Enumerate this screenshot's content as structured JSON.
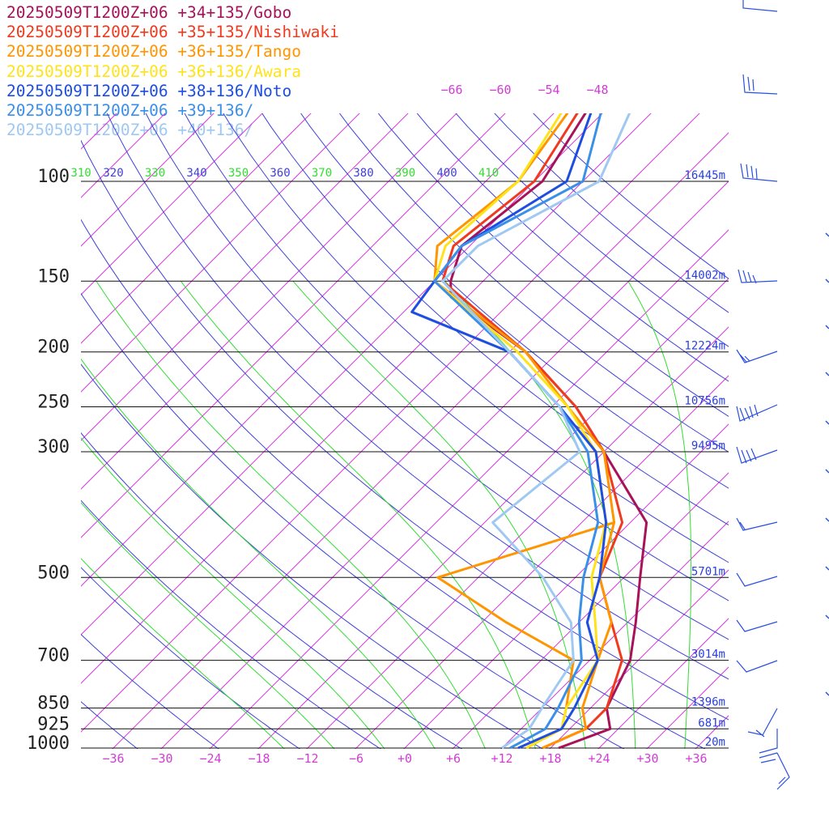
{
  "chart_data": {
    "type": "line",
    "diagram": "skew-T log-p",
    "series": [
      {
        "name": "20250509T1200Z+06 +34+135/Gobo",
        "color": "#a8125a",
        "temperature": [
          [
            1000,
            19
          ],
          [
            925,
            23
          ],
          [
            850,
            20
          ],
          [
            700,
            17
          ],
          [
            600,
            13
          ],
          [
            500,
            8
          ],
          [
            400,
            2
          ],
          [
            300,
            -12
          ],
          [
            250,
            -21
          ],
          [
            200,
            -34
          ],
          [
            160,
            -50
          ],
          [
            150,
            -52
          ],
          [
            130,
            -55
          ],
          [
            100,
            -53
          ],
          [
            70,
            -57
          ],
          [
            50,
            -51
          ]
        ]
      },
      {
        "name": "20250509T1200Z+06 +35+135/Nishiwaki",
        "color": "#f03a1e",
        "temperature": [
          [
            1000,
            17
          ],
          [
            925,
            20
          ],
          [
            850,
            20
          ],
          [
            700,
            16
          ],
          [
            600,
            10
          ],
          [
            500,
            3
          ],
          [
            400,
            -1
          ],
          [
            300,
            -12
          ],
          [
            250,
            -21
          ],
          [
            200,
            -34
          ],
          [
            150,
            -53
          ],
          [
            130,
            -56
          ],
          [
            100,
            -54
          ],
          [
            70,
            -58
          ],
          [
            50,
            -51
          ]
        ]
      },
      {
        "name": "20250509T1200Z+06 +36+135/Tango",
        "color": "#ff9500",
        "temperature": [
          [
            1000,
            17
          ],
          [
            925,
            20
          ],
          [
            850,
            17
          ],
          [
            700,
            13
          ],
          [
            600,
            10
          ],
          [
            500,
            3
          ],
          [
            400,
            -2
          ],
          [
            300,
            -12
          ],
          [
            250,
            -22
          ],
          [
            200,
            -34
          ],
          [
            150,
            -54
          ],
          [
            130,
            -58
          ],
          [
            100,
            -56
          ],
          [
            70,
            -59
          ],
          [
            50,
            -52
          ]
        ],
        "dewpoint": [
          [
            1000,
            15
          ],
          [
            925,
            17
          ],
          [
            850,
            15
          ],
          [
            700,
            10
          ],
          [
            600,
            -3
          ],
          [
            500,
            -17
          ],
          [
            400,
            -2
          ]
        ]
      },
      {
        "name": "20250509T1200Z+06 +36+136/Awara",
        "color": "#ffe31a",
        "temperature": [
          [
            1000,
            15
          ],
          [
            925,
            17
          ],
          [
            850,
            15
          ],
          [
            700,
            13
          ],
          [
            600,
            8
          ],
          [
            500,
            2
          ],
          [
            400,
            -3
          ],
          [
            300,
            -13
          ],
          [
            250,
            -22
          ],
          [
            200,
            -35
          ],
          [
            150,
            -54
          ],
          [
            130,
            -57
          ],
          [
            100,
            -56
          ],
          [
            70,
            -60
          ],
          [
            50,
            -53
          ]
        ]
      },
      {
        "name": "20250509T1200Z+06 +38+136/Noto",
        "color": "#1d4ee0",
        "temperature": [
          [
            1000,
            14
          ],
          [
            925,
            17
          ],
          [
            850,
            16
          ],
          [
            700,
            13
          ],
          [
            600,
            7
          ],
          [
            500,
            3
          ],
          [
            400,
            -3
          ],
          [
            300,
            -13
          ],
          [
            250,
            -23
          ],
          [
            200,
            -36
          ],
          [
            170,
            -53
          ],
          [
            150,
            -54
          ],
          [
            130,
            -55
          ],
          [
            100,
            -50
          ],
          [
            70,
            -57
          ],
          [
            50,
            -53
          ]
        ]
      },
      {
        "name": "20250509T1200Z+06 +39+136/",
        "color": "#3a8fe8",
        "temperature": [
          [
            1000,
            13
          ],
          [
            925,
            15
          ],
          [
            850,
            14
          ],
          [
            700,
            11
          ],
          [
            600,
            6
          ],
          [
            500,
            1
          ],
          [
            400,
            -4
          ],
          [
            300,
            -14
          ],
          [
            250,
            -23
          ],
          [
            200,
            -36
          ],
          [
            150,
            -54
          ],
          [
            130,
            -55
          ],
          [
            100,
            -48
          ],
          [
            70,
            -56
          ],
          [
            50,
            -54
          ]
        ]
      },
      {
        "name": "20250509T1200Z+06 +40+136/",
        "color": "#9fc8f2",
        "temperature": [
          [
            1000,
            12
          ],
          [
            925,
            13
          ],
          [
            850,
            12
          ],
          [
            700,
            10
          ],
          [
            600,
            5
          ],
          [
            500,
            -4
          ],
          [
            400,
            -17
          ],
          [
            300,
            -15
          ],
          [
            250,
            -23
          ],
          [
            200,
            -36
          ],
          [
            150,
            -53
          ],
          [
            130,
            -53
          ],
          [
            100,
            -46
          ],
          [
            70,
            -52
          ],
          [
            50,
            -53
          ]
        ]
      }
    ],
    "pressure_levels": [
      100,
      150,
      200,
      250,
      300,
      500,
      700,
      850,
      925,
      1000
    ],
    "pressure_level_labels": [
      "100",
      "150",
      "200",
      "250",
      "300",
      "500",
      "700",
      "850",
      "925",
      "1000"
    ],
    "height_labels": [
      "16445m",
      "14002m",
      "12224m",
      "10756m",
      "9495m",
      "5701m",
      "3014m",
      "1396m",
      "681m",
      "20m"
    ],
    "x_ticks": [
      -36,
      -30,
      -24,
      -18,
      -12,
      -6,
      0,
      6,
      12,
      18,
      24,
      30,
      36
    ],
    "x_tick_labels": [
      "−36",
      "−30",
      "−24",
      "−18",
      "−12",
      "−6",
      "+0",
      "+6",
      "+12",
      "+18",
      "+24",
      "+30",
      "+36"
    ],
    "upper_isotherm_labels": [
      "−66",
      "−60",
      "−54",
      "−48"
    ],
    "theta_labels": [
      "310",
      "320",
      "330",
      "340",
      "350",
      "360",
      "370",
      "380",
      "390",
      "400",
      "410"
    ],
    "axes": {
      "pressure_range_hPa": [
        1000,
        100
      ],
      "temperature_range_C": [
        -40,
        40
      ],
      "pressure_scale": "log",
      "isotherm_skew": "45 degrees"
    },
    "colors": {
      "isotherm": "#d23bd6",
      "dry_adiabat": "#4040d8",
      "moist_adiabat": "#33dd33",
      "isobar": "#111111",
      "wind_barb": "#2a4fe0"
    },
    "grid": true,
    "legend_placement": "top-left",
    "wind_barbs": "shown at right edge"
  }
}
